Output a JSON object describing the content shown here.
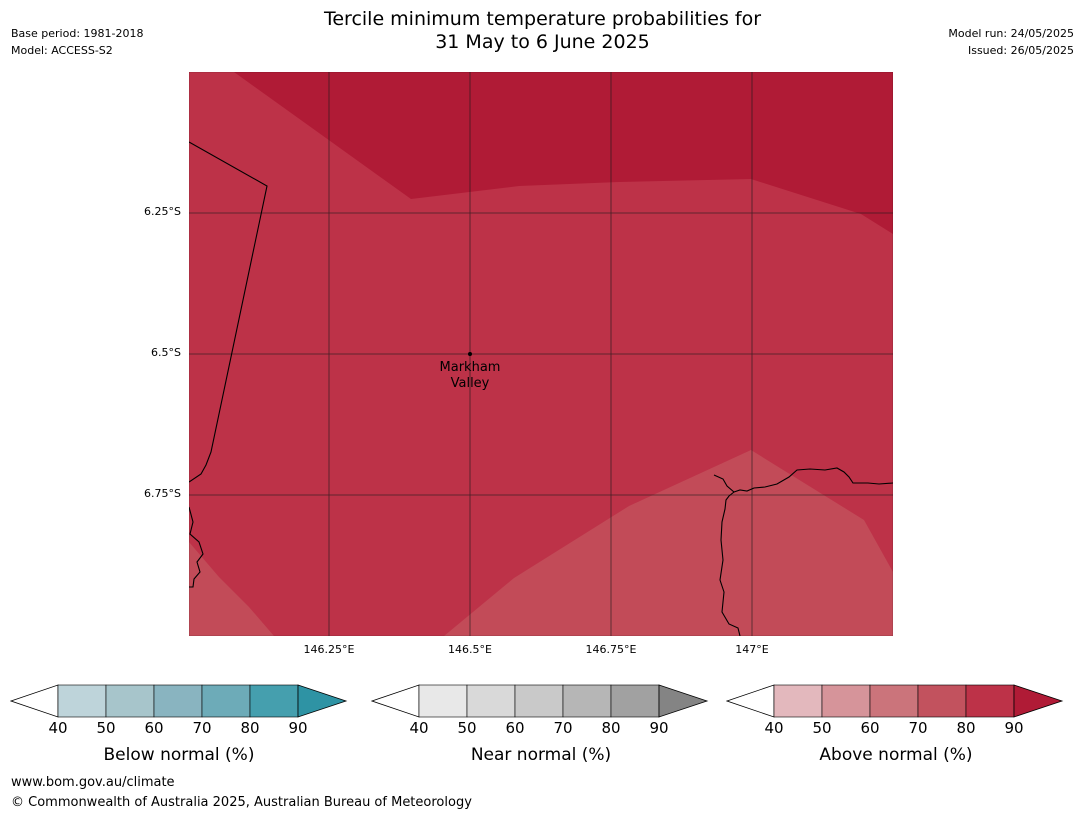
{
  "header": {
    "title_line1": "Tercile minimum temperature probabilities for",
    "title_line2": "31 May to 6 June 2025",
    "base_period": "Base period: 1981-2018",
    "model": "Model: ACCESS-S2",
    "model_run": "Model run: 24/05/2025",
    "issued": "Issued: 26/05/2025"
  },
  "map": {
    "lat_labels": [
      "6.25°S",
      "6.5°S",
      "6.75°S"
    ],
    "lon_labels": [
      "146.25°E",
      "146.5°E",
      "146.75°E",
      "147°E"
    ],
    "place": {
      "line1": "Markham",
      "line2": "Valley"
    },
    "colors": {
      "above_80_90": "#b01b36",
      "above_70_80": "#bd3248",
      "above_60_70": "#c24b58"
    }
  },
  "colorbars": [
    {
      "title": "Below normal (%)",
      "ticks": [
        "40",
        "50",
        "60",
        "70",
        "80",
        "90"
      ],
      "colors": [
        "#ffffff",
        "#bed4da",
        "#a7c5cb",
        "#89b4c0",
        "#6dabb8",
        "#459fae",
        "#2e93a4"
      ]
    },
    {
      "title": "Near normal (%)",
      "ticks": [
        "40",
        "50",
        "60",
        "70",
        "80",
        "90"
      ],
      "colors": [
        "#ffffff",
        "#e8e8e8",
        "#d9d9d9",
        "#c9c9c9",
        "#b6b6b6",
        "#a1a1a1",
        "#848484"
      ]
    },
    {
      "title": "Above normal (%)",
      "ticks": [
        "40",
        "50",
        "60",
        "70",
        "80",
        "90"
      ],
      "colors": [
        "#ffffff",
        "#e3b8bd",
        "#d6949a",
        "#cb747b",
        "#c2525e",
        "#bd3248",
        "#b01b36"
      ]
    }
  ],
  "footer": {
    "url": "www.bom.gov.au/climate",
    "copyright": "© Commonwealth of Australia 2025, Australian Bureau of Meteorology"
  }
}
